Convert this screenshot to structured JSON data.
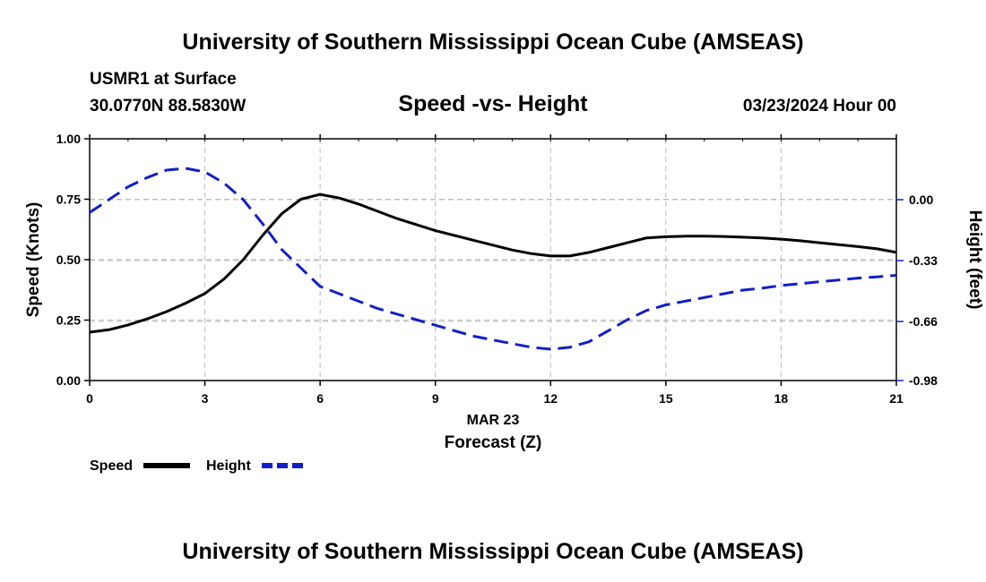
{
  "header": {
    "title_top": "University of Southern Mississippi Ocean Cube (AMSEAS)",
    "title_bottom": "University of Southern Mississippi Ocean Cube (AMSEAS)",
    "station": "USMR1 at Surface",
    "coords": "30.0770N  88.5830W",
    "datetime": "03/23/2024 Hour 00"
  },
  "chart_data": {
    "type": "line",
    "title": "Speed -vs- Height",
    "xlabel": "Forecast (Z)",
    "xsublabel": "MAR 23",
    "ylabel": "Speed (Knots)",
    "y2label": "Height (feet)",
    "xlim": [
      0,
      21
    ],
    "ylim": [
      0,
      1
    ],
    "y2lim": [
      -0.98,
      0.33
    ],
    "xticks": [
      "0",
      "3",
      "6",
      "9",
      "12",
      "15",
      "18",
      "21"
    ],
    "yticks": [
      "0.00",
      "0.25",
      "0.50",
      "0.75",
      "1.00"
    ],
    "y2ticks": [
      "-0.98",
      "-0.66",
      "-0.33",
      "0.00"
    ],
    "grid": true,
    "legend_position": "bottom-left",
    "series": [
      {
        "name": "Speed",
        "axis": "left",
        "color": "#000000",
        "dash": "solid",
        "x": [
          0,
          0.5,
          1,
          1.5,
          2,
          2.5,
          3,
          3.5,
          4,
          4.5,
          5,
          5.5,
          6,
          6.5,
          7,
          7.5,
          8,
          8.5,
          9,
          9.5,
          10,
          10.5,
          11,
          11.5,
          12,
          12.5,
          13,
          13.5,
          14,
          14.5,
          15,
          15.5,
          16,
          16.5,
          17,
          17.5,
          18,
          18.5,
          19,
          19.5,
          20,
          20.5,
          21
        ],
        "values": [
          0.2,
          0.21,
          0.23,
          0.255,
          0.285,
          0.32,
          0.36,
          0.42,
          0.5,
          0.6,
          0.69,
          0.75,
          0.77,
          0.755,
          0.73,
          0.7,
          0.67,
          0.645,
          0.62,
          0.6,
          0.58,
          0.56,
          0.54,
          0.525,
          0.515,
          0.515,
          0.53,
          0.55,
          0.57,
          0.59,
          0.595,
          0.597,
          0.597,
          0.596,
          0.593,
          0.59,
          0.585,
          0.578,
          0.57,
          0.562,
          0.554,
          0.545,
          0.53
        ]
      },
      {
        "name": "Height",
        "axis": "right",
        "color": "#1020c8",
        "dash": "dashed",
        "x": [
          0,
          0.5,
          1,
          1.5,
          2,
          2.5,
          3,
          3.5,
          4,
          4.5,
          5,
          5.5,
          6,
          6.5,
          7,
          7.5,
          8,
          8.5,
          9,
          9.5,
          10,
          10.5,
          11,
          11.5,
          12,
          12.5,
          13,
          13.5,
          14,
          14.5,
          15,
          15.5,
          16,
          16.5,
          17,
          17.5,
          18,
          18.5,
          19,
          19.5,
          20,
          20.5,
          21
        ],
        "values": [
          -0.07,
          0.0,
          0.07,
          0.12,
          0.16,
          0.17,
          0.15,
          0.09,
          0.0,
          -0.13,
          -0.27,
          -0.37,
          -0.47,
          -0.51,
          -0.55,
          -0.59,
          -0.62,
          -0.65,
          -0.68,
          -0.71,
          -0.74,
          -0.76,
          -0.78,
          -0.8,
          -0.81,
          -0.8,
          -0.77,
          -0.71,
          -0.65,
          -0.6,
          -0.57,
          -0.55,
          -0.53,
          -0.51,
          -0.49,
          -0.48,
          -0.465,
          -0.455,
          -0.445,
          -0.435,
          -0.425,
          -0.418,
          -0.41
        ]
      }
    ]
  }
}
